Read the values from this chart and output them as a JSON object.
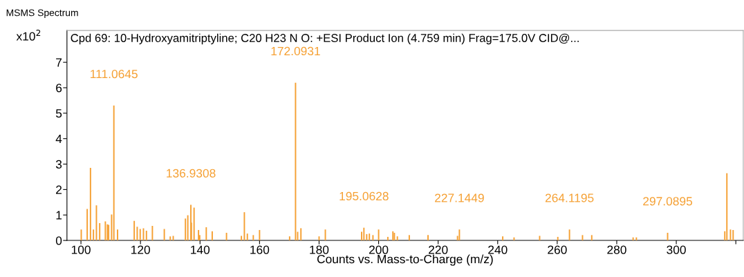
{
  "chart_data": {
    "type": "bar",
    "title": "MSMS Spectrum",
    "subtitle": "Cpd 69: 10-Hydroxyamitriptyline; C20 H23 N O: +ESI Product Ion (4.759 min) Frag=175.0V CID@...",
    "xlabel": "Counts vs. Mass-to-Charge (m/z)",
    "ylabel": "x10$^{2}$",
    "x": [
      100.1,
      102.1,
      103.2,
      104.2,
      105.2,
      106.3,
      108.2,
      108.9,
      109.3,
      110.3,
      111.06,
      112.3,
      117.9,
      118.9,
      119.9,
      121.0,
      122.0,
      124.0,
      128.0,
      130.0,
      131.0,
      135.1,
      135.9,
      136.93,
      137.1,
      138.0,
      139.5,
      139.9,
      142.1,
      144.1,
      148.9,
      153.9,
      154.9,
      155.9,
      157.9,
      160.0,
      170.1,
      172.09,
      172.8,
      173.9,
      180.0,
      182.1,
      194.3,
      195.06,
      196.0,
      196.9,
      198.1,
      200.0,
      203.1,
      204.8,
      205.3,
      206.3,
      210.3,
      216.6,
      226.5,
      227.14,
      241.7,
      245.5,
      254.1,
      260.2,
      264.12,
      268.5,
      271.6,
      285.5,
      286.6,
      297.09,
      316.3,
      317.0,
      318.2,
      319.1
    ],
    "values": [
      0.43,
      1.24,
      2.85,
      0.43,
      1.38,
      0.68,
      0.75,
      0.63,
      0.61,
      1.02,
      5.3,
      0.43,
      0.77,
      0.54,
      0.45,
      0.48,
      0.38,
      0.57,
      0.45,
      0.16,
      0.18,
      0.86,
      0.99,
      1.4,
      0.7,
      1.29,
      0.41,
      0.21,
      0.52,
      0.36,
      0.3,
      0.18,
      1.11,
      0.27,
      0.21,
      0.41,
      0.16,
      6.2,
      0.34,
      0.48,
      0.16,
      0.43,
      0.34,
      0.5,
      0.25,
      0.27,
      0.21,
      0.43,
      0.14,
      0.36,
      0.3,
      0.16,
      0.21,
      0.21,
      0.18,
      0.43,
      0.16,
      0.12,
      0.18,
      0.14,
      0.43,
      0.21,
      0.21,
      0.12,
      0.12,
      0.3,
      0.36,
      2.64,
      0.43,
      0.41
    ],
    "color": "#f5a033",
    "annotations": [
      {
        "text": "111.0645",
        "x": 111.06,
        "y": 5.3
      },
      {
        "text": "136.9308",
        "x": 136.93,
        "y": 1.4
      },
      {
        "text": "172.0931",
        "x": 172.09,
        "y": 6.2
      },
      {
        "text": "195.0628",
        "x": 195.06,
        "y": 0.5
      },
      {
        "text": "227.1449",
        "x": 227.14,
        "y": 0.43
      },
      {
        "text": "264.1195",
        "x": 264.12,
        "y": 0.43
      },
      {
        "text": "297.0895",
        "x": 297.09,
        "y": 0.3
      }
    ],
    "xlim": [
      95.3,
      322.5
    ],
    "ylim": [
      0,
      8.25
    ],
    "xticks": [
      100,
      120,
      140,
      160,
      180,
      200,
      220,
      240,
      260,
      280,
      300,
      {
        "value": 320,
        "label": null
      }
    ],
    "yticks": [
      0,
      1,
      2,
      3,
      4,
      5,
      6,
      7
    ],
    "grid": false
  }
}
